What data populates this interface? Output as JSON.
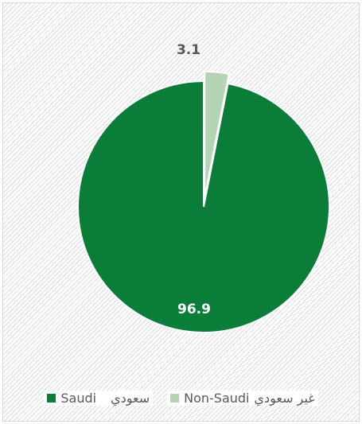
{
  "chart_data": {
    "type": "pie",
    "categories": [
      "Saudi سعودي",
      "Non-Saudi غير سعودي"
    ],
    "values": [
      96.9,
      3.1
    ],
    "colors": [
      "#0a7d38",
      "#b5d3b5"
    ],
    "data_labels": [
      "96.9",
      "3.1"
    ],
    "label_colors": [
      "#ffffff",
      "#595959"
    ],
    "legend_position": "bottom",
    "legend": [
      {
        "en": "Saudi",
        "ar": "سعودي",
        "color": "#0a7d38"
      },
      {
        "en": "Non-Saudi",
        "ar": "غير سعودي",
        "color": "#b5d3b5"
      }
    ]
  }
}
